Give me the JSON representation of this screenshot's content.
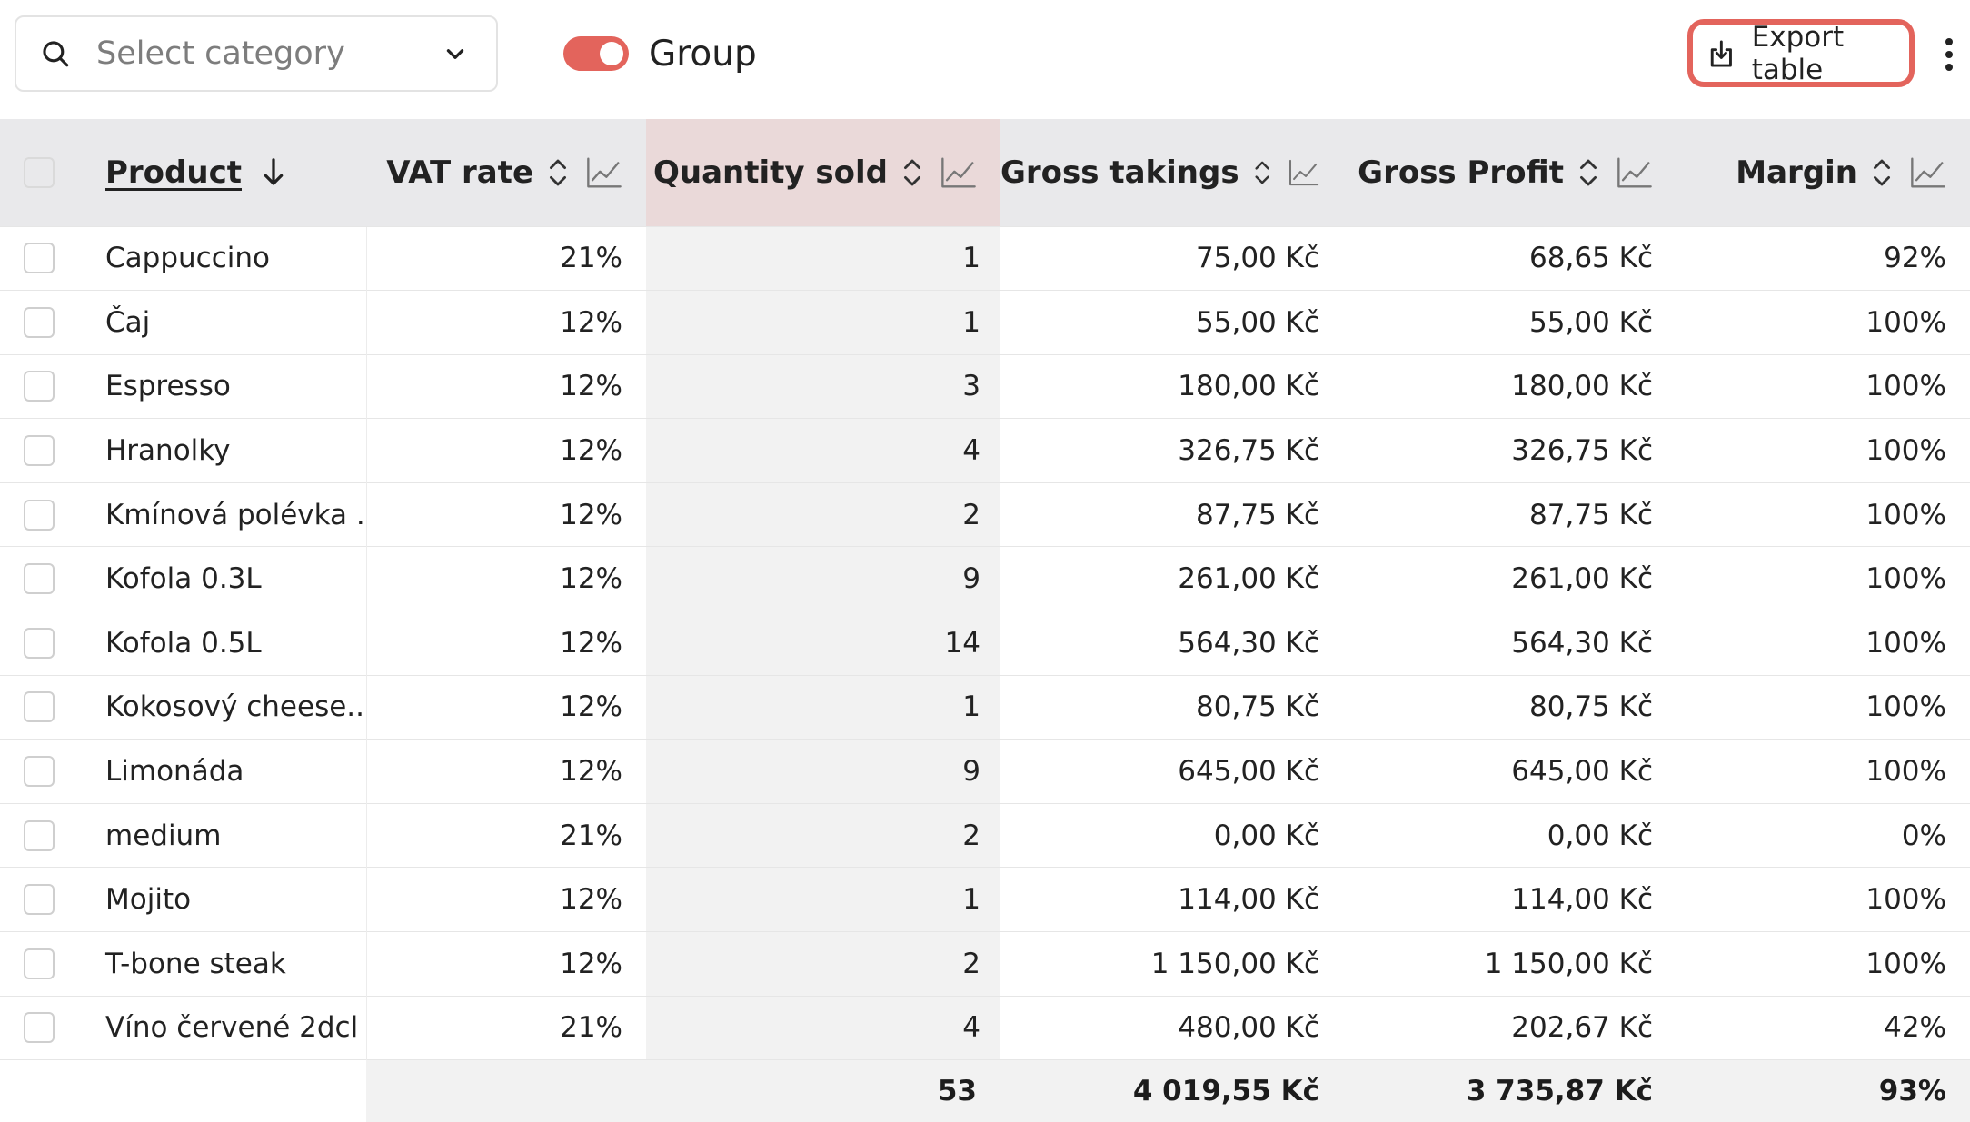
{
  "toolbar": {
    "category_placeholder": "Select category",
    "group_label": "Group",
    "group_enabled": true,
    "export_label": "Export table",
    "accent_color": "#e3645c"
  },
  "table": {
    "headers": {
      "product": "Product",
      "vat": "VAT rate",
      "qty": "Quantity sold",
      "gross_takings": "Gross takings",
      "gross_profit": "Gross Profit",
      "margin": "Margin"
    },
    "sort": {
      "column": "product",
      "direction": "descending"
    },
    "rows": [
      {
        "product": "Cappuccino",
        "vat": "21%",
        "qty": "1",
        "gross_takings": "75,00 Kč",
        "gross_profit": "68,65 Kč",
        "margin": "92%"
      },
      {
        "product": "Čaj",
        "vat": "12%",
        "qty": "1",
        "gross_takings": "55,00 Kč",
        "gross_profit": "55,00 Kč",
        "margin": "100%"
      },
      {
        "product": "Espresso",
        "vat": "12%",
        "qty": "3",
        "gross_takings": "180,00 Kč",
        "gross_profit": "180,00 Kč",
        "margin": "100%"
      },
      {
        "product": "Hranolky",
        "vat": "12%",
        "qty": "4",
        "gross_takings": "326,75 Kč",
        "gross_profit": "326,75 Kč",
        "margin": "100%"
      },
      {
        "product": "Kmínová polévka ...",
        "vat": "12%",
        "qty": "2",
        "gross_takings": "87,75 Kč",
        "gross_profit": "87,75 Kč",
        "margin": "100%"
      },
      {
        "product": "Kofola 0.3L",
        "vat": "12%",
        "qty": "9",
        "gross_takings": "261,00 Kč",
        "gross_profit": "261,00 Kč",
        "margin": "100%"
      },
      {
        "product": "Kofola 0.5L",
        "vat": "12%",
        "qty": "14",
        "gross_takings": "564,30 Kč",
        "gross_profit": "564,30 Kč",
        "margin": "100%"
      },
      {
        "product": "Kokosový cheese...",
        "vat": "12%",
        "qty": "1",
        "gross_takings": "80,75 Kč",
        "gross_profit": "80,75 Kč",
        "margin": "100%"
      },
      {
        "product": "Limonáda",
        "vat": "12%",
        "qty": "9",
        "gross_takings": "645,00 Kč",
        "gross_profit": "645,00 Kč",
        "margin": "100%"
      },
      {
        "product": "medium",
        "vat": "21%",
        "qty": "2",
        "gross_takings": "0,00 Kč",
        "gross_profit": "0,00 Kč",
        "margin": "0%"
      },
      {
        "product": "Mojito",
        "vat": "12%",
        "qty": "1",
        "gross_takings": "114,00 Kč",
        "gross_profit": "114,00 Kč",
        "margin": "100%"
      },
      {
        "product": "T-bone steak",
        "vat": "12%",
        "qty": "2",
        "gross_takings": "1 150,00 Kč",
        "gross_profit": "1 150,00 Kč",
        "margin": "100%"
      },
      {
        "product": "Víno červené 2dcl",
        "vat": "21%",
        "qty": "4",
        "gross_takings": "480,00 Kč",
        "gross_profit": "202,67 Kč",
        "margin": "42%"
      }
    ],
    "totals": {
      "qty": "53",
      "gross_takings": "4 019,55 Kč",
      "gross_profit": "3 735,87 Kč",
      "margin": "93%"
    }
  }
}
